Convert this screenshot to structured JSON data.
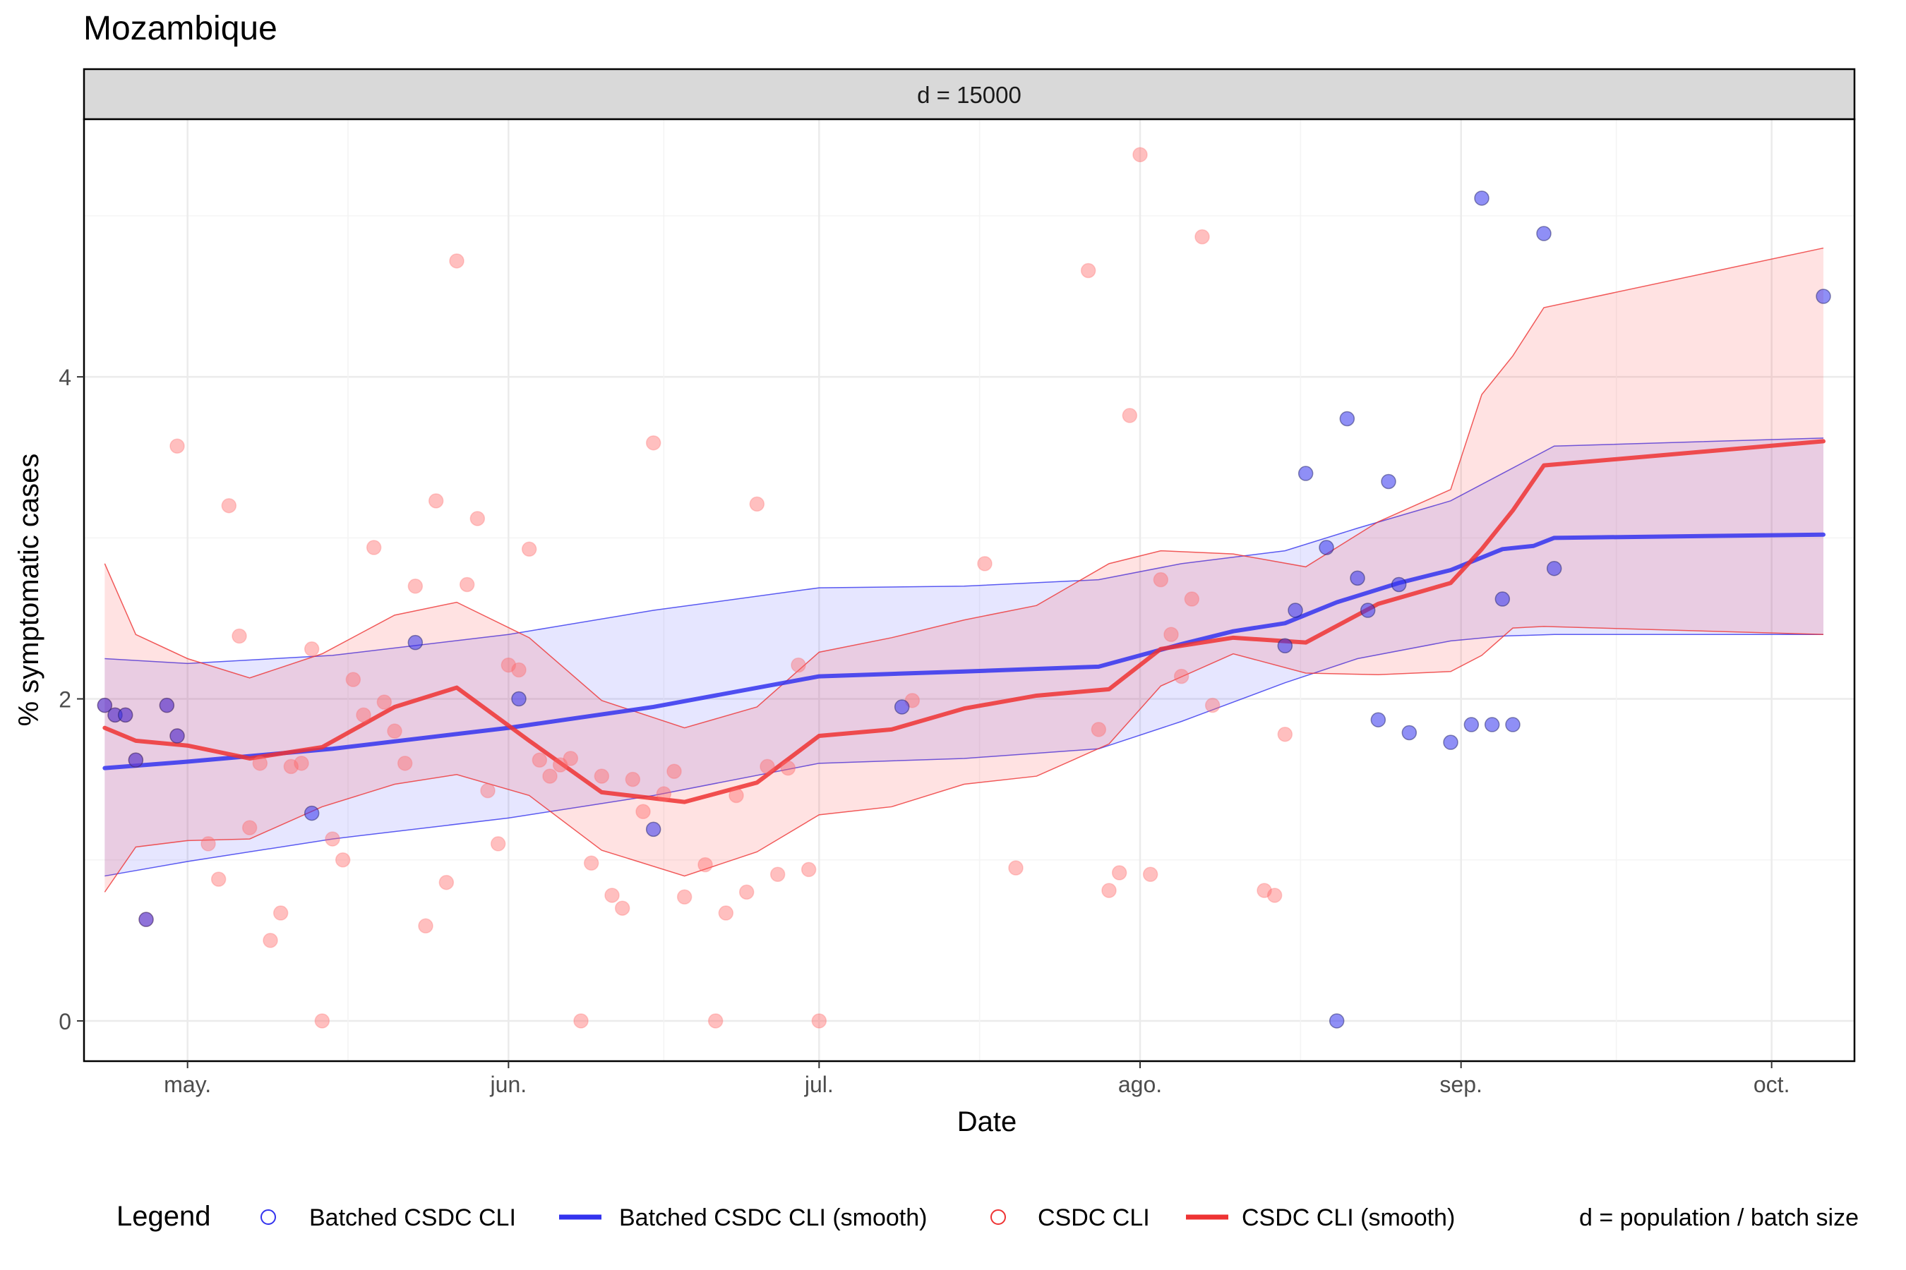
{
  "colors": {
    "batched": "#3333ee",
    "csdc": "#ee3333",
    "batched_fill": "#3333ff",
    "csdc_fill": "#ff3333",
    "panel_border": "#000000",
    "grid": "#ebebeb",
    "strip_bg": "#d9d9d9"
  },
  "chart_data": {
    "type": "scatter",
    "title": "Mozambique",
    "facet_label": "d = 15000",
    "xlabel": "Date",
    "ylabel": "% symptomatic cases",
    "x_is_date": true,
    "xlim": [
      "2020-04-21",
      "2020-10-09"
    ],
    "ylim": [
      -0.25,
      5.6
    ],
    "y_ticks": [
      0,
      2,
      4
    ],
    "x_ticks": [
      {
        "date": "2020-05-01",
        "label": "may."
      },
      {
        "date": "2020-06-01",
        "label": "jun."
      },
      {
        "date": "2020-07-01",
        "label": "jul."
      },
      {
        "date": "2020-08-01",
        "label": "ago."
      },
      {
        "date": "2020-09-01",
        "label": "sep."
      },
      {
        "date": "2020-10-01",
        "label": "oct."
      }
    ],
    "grid": true,
    "legend": {
      "title": "Legend",
      "position": "bottom",
      "entries": [
        {
          "key": "batched_points",
          "label": "Batched CSDC CLI",
          "kind": "open-circle",
          "color": "#3333ee"
        },
        {
          "key": "batched_smooth",
          "label": "Batched CSDC CLI (smooth)",
          "kind": "line",
          "color": "#3333ee"
        },
        {
          "key": "csdc_points",
          "label": "CSDC CLI",
          "kind": "open-circle",
          "color": "#ee3333"
        },
        {
          "key": "csdc_smooth",
          "label": "CSDC CLI (smooth)",
          "kind": "line",
          "color": "#ee3333"
        }
      ],
      "note": "d = population / batch size"
    },
    "series": [
      {
        "key": "csdc_points",
        "kind": "points",
        "color": "#ff6666",
        "points": [
          [
            "2020-04-23",
            1.96
          ],
          [
            "2020-04-24",
            1.9
          ],
          [
            "2020-04-25",
            1.9
          ],
          [
            "2020-04-26",
            1.62
          ],
          [
            "2020-04-27",
            0.63
          ],
          [
            "2020-04-29",
            1.96
          ],
          [
            "2020-04-30",
            3.57
          ],
          [
            "2020-04-30",
            1.77
          ],
          [
            "2020-05-03",
            1.1
          ],
          [
            "2020-05-04",
            0.88
          ],
          [
            "2020-05-05",
            3.2
          ],
          [
            "2020-05-06",
            2.39
          ],
          [
            "2020-05-07",
            1.2
          ],
          [
            "2020-05-08",
            1.6
          ],
          [
            "2020-05-09",
            0.5
          ],
          [
            "2020-05-10",
            0.67
          ],
          [
            "2020-05-11",
            1.58
          ],
          [
            "2020-05-12",
            1.6
          ],
          [
            "2020-05-13",
            2.31
          ],
          [
            "2020-05-14",
            0.0
          ],
          [
            "2020-05-15",
            1.13
          ],
          [
            "2020-05-16",
            1.0
          ],
          [
            "2020-05-17",
            2.12
          ],
          [
            "2020-05-18",
            1.9
          ],
          [
            "2020-05-19",
            2.94
          ],
          [
            "2020-05-20",
            1.98
          ],
          [
            "2020-05-21",
            1.8
          ],
          [
            "2020-05-22",
            1.6
          ],
          [
            "2020-05-23",
            2.7
          ],
          [
            "2020-05-24",
            0.59
          ],
          [
            "2020-05-25",
            3.23
          ],
          [
            "2020-05-26",
            0.86
          ],
          [
            "2020-05-27",
            4.72
          ],
          [
            "2020-05-28",
            2.71
          ],
          [
            "2020-05-29",
            3.12
          ],
          [
            "2020-05-30",
            1.43
          ],
          [
            "2020-05-31",
            1.1
          ],
          [
            "2020-06-01",
            2.21
          ],
          [
            "2020-06-02",
            2.18
          ],
          [
            "2020-06-03",
            2.93
          ],
          [
            "2020-06-04",
            1.62
          ],
          [
            "2020-06-05",
            1.52
          ],
          [
            "2020-06-06",
            1.59
          ],
          [
            "2020-06-07",
            1.63
          ],
          [
            "2020-06-08",
            0.0
          ],
          [
            "2020-06-09",
            0.98
          ],
          [
            "2020-06-10",
            1.52
          ],
          [
            "2020-06-11",
            0.78
          ],
          [
            "2020-06-12",
            0.7
          ],
          [
            "2020-06-13",
            1.5
          ],
          [
            "2020-06-14",
            1.3
          ],
          [
            "2020-06-15",
            3.59
          ],
          [
            "2020-06-16",
            1.41
          ],
          [
            "2020-06-17",
            1.55
          ],
          [
            "2020-06-18",
            0.77
          ],
          [
            "2020-06-20",
            0.97
          ],
          [
            "2020-06-21",
            0.0
          ],
          [
            "2020-06-22",
            0.67
          ],
          [
            "2020-06-23",
            1.4
          ],
          [
            "2020-06-24",
            0.8
          ],
          [
            "2020-06-25",
            3.21
          ],
          [
            "2020-06-26",
            1.58
          ],
          [
            "2020-06-27",
            0.91
          ],
          [
            "2020-06-28",
            1.57
          ],
          [
            "2020-06-29",
            2.21
          ],
          [
            "2020-06-30",
            0.94
          ],
          [
            "2020-07-01",
            0.0
          ],
          [
            "2020-07-10",
            1.99
          ],
          [
            "2020-07-17",
            2.84
          ],
          [
            "2020-07-20",
            0.95
          ],
          [
            "2020-07-27",
            4.66
          ],
          [
            "2020-07-28",
            1.81
          ],
          [
            "2020-07-29",
            0.81
          ],
          [
            "2020-07-30",
            0.92
          ],
          [
            "2020-07-31",
            3.76
          ],
          [
            "2020-08-01",
            5.38
          ],
          [
            "2020-08-02",
            0.91
          ],
          [
            "2020-08-03",
            2.74
          ],
          [
            "2020-08-04",
            2.4
          ],
          [
            "2020-08-05",
            2.14
          ],
          [
            "2020-08-06",
            2.62
          ],
          [
            "2020-08-07",
            4.87
          ],
          [
            "2020-08-08",
            1.96
          ],
          [
            "2020-08-13",
            0.81
          ],
          [
            "2020-08-14",
            0.78
          ],
          [
            "2020-08-15",
            1.78
          ]
        ]
      },
      {
        "key": "batched_points",
        "kind": "points",
        "color": "#3333ee",
        "points": [
          [
            "2020-04-23",
            1.96
          ],
          [
            "2020-04-24",
            1.9
          ],
          [
            "2020-04-25",
            1.9
          ],
          [
            "2020-04-26",
            1.62
          ],
          [
            "2020-04-27",
            0.63
          ],
          [
            "2020-04-29",
            1.96
          ],
          [
            "2020-04-30",
            1.77
          ],
          [
            "2020-05-13",
            1.29
          ],
          [
            "2020-05-23",
            2.35
          ],
          [
            "2020-06-02",
            2.0
          ],
          [
            "2020-06-15",
            1.19
          ],
          [
            "2020-07-09",
            1.95
          ],
          [
            "2020-08-15",
            2.33
          ],
          [
            "2020-08-16",
            2.55
          ],
          [
            "2020-08-17",
            3.4
          ],
          [
            "2020-08-19",
            2.94
          ],
          [
            "2020-08-20",
            0.0
          ],
          [
            "2020-08-21",
            3.74
          ],
          [
            "2020-08-22",
            2.75
          ],
          [
            "2020-08-23",
            2.55
          ],
          [
            "2020-08-24",
            1.87
          ],
          [
            "2020-08-25",
            3.35
          ],
          [
            "2020-08-26",
            2.71
          ],
          [
            "2020-08-27",
            1.79
          ],
          [
            "2020-08-31",
            1.73
          ],
          [
            "2020-09-02",
            1.84
          ],
          [
            "2020-09-03",
            5.11
          ],
          [
            "2020-09-04",
            1.84
          ],
          [
            "2020-09-05",
            2.62
          ],
          [
            "2020-09-06",
            1.84
          ],
          [
            "2020-09-09",
            4.89
          ],
          [
            "2020-09-10",
            2.81
          ],
          [
            "2020-10-06",
            4.5
          ]
        ]
      },
      {
        "key": "batched_band",
        "kind": "band",
        "color": "#3333ff",
        "x": [
          "2020-04-23",
          "2020-05-01",
          "2020-05-15",
          "2020-06-01",
          "2020-06-15",
          "2020-07-01",
          "2020-07-15",
          "2020-07-28",
          "2020-08-05",
          "2020-08-15",
          "2020-08-22",
          "2020-08-31",
          "2020-09-05",
          "2020-09-10",
          "2020-10-06"
        ],
        "lower": [
          0.9,
          0.99,
          1.13,
          1.26,
          1.4,
          1.6,
          1.63,
          1.69,
          1.86,
          2.1,
          2.25,
          2.36,
          2.39,
          2.4,
          2.4
        ],
        "upper": [
          2.25,
          2.22,
          2.27,
          2.4,
          2.55,
          2.69,
          2.7,
          2.74,
          2.84,
          2.92,
          3.06,
          3.23,
          3.4,
          3.57,
          3.62
        ]
      },
      {
        "key": "csdc_band",
        "kind": "band",
        "color": "#ff3333",
        "x": [
          "2020-04-23",
          "2020-04-26",
          "2020-05-01",
          "2020-05-07",
          "2020-05-14",
          "2020-05-21",
          "2020-05-27",
          "2020-06-03",
          "2020-06-10",
          "2020-06-18",
          "2020-06-25",
          "2020-07-01",
          "2020-07-08",
          "2020-07-15",
          "2020-07-22",
          "2020-07-29",
          "2020-08-03",
          "2020-08-10",
          "2020-08-17",
          "2020-08-24",
          "2020-08-31",
          "2020-09-03",
          "2020-09-06",
          "2020-09-09",
          "2020-10-06"
        ],
        "lower": [
          0.8,
          1.08,
          1.12,
          1.13,
          1.33,
          1.47,
          1.53,
          1.4,
          1.06,
          0.9,
          1.05,
          1.28,
          1.33,
          1.47,
          1.52,
          1.72,
          2.08,
          2.28,
          2.16,
          2.15,
          2.17,
          2.27,
          2.44,
          2.45,
          2.4
        ],
        "upper": [
          2.84,
          2.4,
          2.25,
          2.13,
          2.28,
          2.52,
          2.6,
          2.38,
          1.99,
          1.82,
          1.95,
          2.29,
          2.38,
          2.49,
          2.58,
          2.84,
          2.92,
          2.9,
          2.82,
          3.1,
          3.3,
          3.89,
          4.13,
          4.43,
          4.8
        ]
      },
      {
        "key": "batched_smooth",
        "kind": "line",
        "color": "#3333ee",
        "x": [
          "2020-04-23",
          "2020-05-01",
          "2020-05-15",
          "2020-06-01",
          "2020-06-15",
          "2020-07-01",
          "2020-07-15",
          "2020-07-28",
          "2020-08-05",
          "2020-08-10",
          "2020-08-15",
          "2020-08-20",
          "2020-08-26",
          "2020-08-31",
          "2020-09-05",
          "2020-09-08",
          "2020-09-10",
          "2020-10-06"
        ],
        "y": [
          1.57,
          1.61,
          1.69,
          1.82,
          1.95,
          2.14,
          2.17,
          2.2,
          2.34,
          2.42,
          2.47,
          2.6,
          2.72,
          2.8,
          2.93,
          2.95,
          3.0,
          3.02
        ]
      },
      {
        "key": "csdc_smooth",
        "kind": "line",
        "color": "#ee3333",
        "x": [
          "2020-04-23",
          "2020-04-26",
          "2020-05-01",
          "2020-05-07",
          "2020-05-14",
          "2020-05-21",
          "2020-05-27",
          "2020-06-03",
          "2020-06-10",
          "2020-06-18",
          "2020-06-25",
          "2020-07-01",
          "2020-07-08",
          "2020-07-15",
          "2020-07-22",
          "2020-07-29",
          "2020-08-03",
          "2020-08-10",
          "2020-08-17",
          "2020-08-24",
          "2020-08-31",
          "2020-09-03",
          "2020-09-06",
          "2020-09-09",
          "2020-10-06"
        ],
        "y": [
          1.82,
          1.74,
          1.71,
          1.63,
          1.7,
          1.95,
          2.07,
          1.74,
          1.42,
          1.36,
          1.48,
          1.77,
          1.81,
          1.94,
          2.02,
          2.06,
          2.31,
          2.38,
          2.35,
          2.59,
          2.72,
          2.93,
          3.17,
          3.45,
          3.6
        ]
      }
    ]
  }
}
